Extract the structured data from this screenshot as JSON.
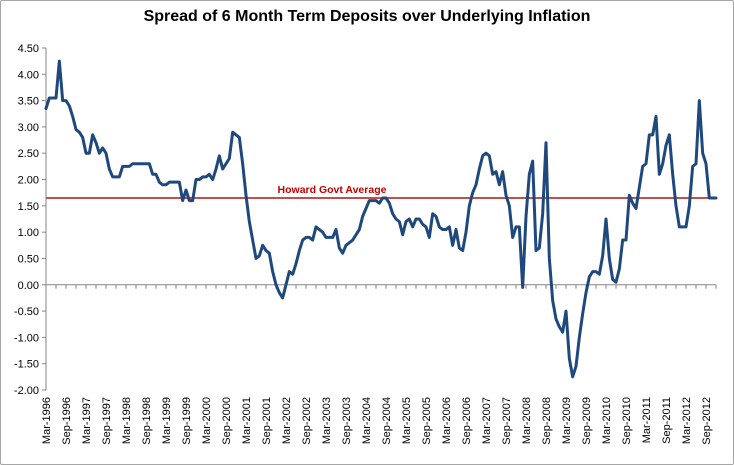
{
  "chart_data": {
    "type": "line",
    "title": "Spread of 6 Month Term Deposits over Underlying Inflation",
    "xlabel": "",
    "ylabel": "",
    "ylim": [
      -2.0,
      4.5
    ],
    "ytick_step": 0.5,
    "x_start": "1996-03",
    "x_end": "2012-09",
    "x_tick_labels": [
      "Mar-1996",
      "Sep-1996",
      "Mar-1997",
      "Sep-1997",
      "Mar-1998",
      "Sep-1998",
      "Mar-1999",
      "Sep-1999",
      "Mar-2000",
      "Sep-2000",
      "Mar-2001",
      "Sep-2001",
      "Mar-2002",
      "Sep-2002",
      "Mar-2003",
      "Sep-2003",
      "Mar-2004",
      "Sep-2004",
      "Mar-2005",
      "Sep-2005",
      "Mar-2006",
      "Sep-2006",
      "Mar-2007",
      "Sep-2007",
      "Mar-2008",
      "Sep-2008",
      "Mar-2009",
      "Sep-2009",
      "Mar-2010",
      "Sep-2010",
      "Mar-2011",
      "Sep-2011",
      "Mar-2012",
      "Sep-2012"
    ],
    "grid": false,
    "series": [
      {
        "name": "",
        "color": "#1f497d",
        "points": [
          [
            "1996-03",
            3.35
          ],
          [
            "1996-04",
            3.55
          ],
          [
            "1996-05",
            3.55
          ],
          [
            "1996-06",
            3.55
          ],
          [
            "1996-07",
            4.25
          ],
          [
            "1996-08",
            3.5
          ],
          [
            "1996-09",
            3.5
          ],
          [
            "1996-10",
            3.4
          ],
          [
            "1996-11",
            3.2
          ],
          [
            "1996-12",
            2.95
          ],
          [
            "1997-01",
            2.9
          ],
          [
            "1997-02",
            2.8
          ],
          [
            "1997-03",
            2.5
          ],
          [
            "1997-04",
            2.5
          ],
          [
            "1997-05",
            2.85
          ],
          [
            "1997-06",
            2.7
          ],
          [
            "1997-07",
            2.5
          ],
          [
            "1997-08",
            2.6
          ],
          [
            "1997-09",
            2.5
          ],
          [
            "1997-10",
            2.2
          ],
          [
            "1997-11",
            2.05
          ],
          [
            "1997-12",
            2.05
          ],
          [
            "1998-01",
            2.05
          ],
          [
            "1998-02",
            2.25
          ],
          [
            "1998-03",
            2.25
          ],
          [
            "1998-04",
            2.25
          ],
          [
            "1998-05",
            2.3
          ],
          [
            "1998-06",
            2.3
          ],
          [
            "1998-07",
            2.3
          ],
          [
            "1998-08",
            2.3
          ],
          [
            "1998-09",
            2.3
          ],
          [
            "1998-10",
            2.3
          ],
          [
            "1998-11",
            2.1
          ],
          [
            "1998-12",
            2.1
          ],
          [
            "1999-01",
            1.95
          ],
          [
            "1999-02",
            1.9
          ],
          [
            "1999-03",
            1.9
          ],
          [
            "1999-04",
            1.95
          ],
          [
            "1999-05",
            1.95
          ],
          [
            "1999-06",
            1.95
          ],
          [
            "1999-07",
            1.95
          ],
          [
            "1999-08",
            1.6
          ],
          [
            "1999-09",
            1.8
          ],
          [
            "1999-10",
            1.6
          ],
          [
            "1999-11",
            1.6
          ],
          [
            "1999-12",
            2.0
          ],
          [
            "2000-01",
            2.0
          ],
          [
            "2000-02",
            2.05
          ],
          [
            "2000-03",
            2.05
          ],
          [
            "2000-04",
            2.1
          ],
          [
            "2000-05",
            2.0
          ],
          [
            "2000-06",
            2.2
          ],
          [
            "2000-07",
            2.45
          ],
          [
            "2000-08",
            2.2
          ],
          [
            "2000-09",
            2.3
          ],
          [
            "2000-10",
            2.4
          ],
          [
            "2000-11",
            2.9
          ],
          [
            "2000-12",
            2.85
          ],
          [
            "2001-01",
            2.8
          ],
          [
            "2001-02",
            2.3
          ],
          [
            "2001-03",
            1.7
          ],
          [
            "2001-04",
            1.2
          ],
          [
            "2001-05",
            0.85
          ],
          [
            "2001-06",
            0.5
          ],
          [
            "2001-07",
            0.55
          ],
          [
            "2001-08",
            0.75
          ],
          [
            "2001-09",
            0.65
          ],
          [
            "2001-10",
            0.6
          ],
          [
            "2001-11",
            0.25
          ],
          [
            "2001-12",
            0.0
          ],
          [
            "2002-01",
            -0.15
          ],
          [
            "2002-02",
            -0.25
          ],
          [
            "2002-03",
            0.0
          ],
          [
            "2002-04",
            0.25
          ],
          [
            "2002-05",
            0.2
          ],
          [
            "2002-06",
            0.4
          ],
          [
            "2002-07",
            0.65
          ],
          [
            "2002-08",
            0.85
          ],
          [
            "2002-09",
            0.9
          ],
          [
            "2002-10",
            0.9
          ],
          [
            "2002-11",
            0.85
          ],
          [
            "2002-12",
            1.1
          ],
          [
            "2003-01",
            1.05
          ],
          [
            "2003-02",
            1.0
          ],
          [
            "2003-03",
            0.9
          ],
          [
            "2003-04",
            0.9
          ],
          [
            "2003-05",
            0.9
          ],
          [
            "2003-06",
            1.05
          ],
          [
            "2003-07",
            0.7
          ],
          [
            "2003-08",
            0.6
          ],
          [
            "2003-09",
            0.75
          ],
          [
            "2003-10",
            0.8
          ],
          [
            "2003-11",
            0.85
          ],
          [
            "2003-12",
            0.95
          ],
          [
            "2004-01",
            1.05
          ],
          [
            "2004-02",
            1.3
          ],
          [
            "2004-03",
            1.45
          ],
          [
            "2004-04",
            1.6
          ],
          [
            "2004-05",
            1.6
          ],
          [
            "2004-06",
            1.6
          ],
          [
            "2004-07",
            1.55
          ],
          [
            "2004-08",
            1.65
          ],
          [
            "2004-09",
            1.65
          ],
          [
            "2004-10",
            1.55
          ],
          [
            "2004-11",
            1.35
          ],
          [
            "2004-12",
            1.25
          ],
          [
            "2005-01",
            1.2
          ],
          [
            "2005-02",
            0.95
          ],
          [
            "2005-03",
            1.2
          ],
          [
            "2005-04",
            1.25
          ],
          [
            "2005-05",
            1.1
          ],
          [
            "2005-06",
            1.25
          ],
          [
            "2005-07",
            1.25
          ],
          [
            "2005-08",
            1.15
          ],
          [
            "2005-09",
            1.1
          ],
          [
            "2005-10",
            0.9
          ],
          [
            "2005-11",
            1.35
          ],
          [
            "2005-12",
            1.3
          ],
          [
            "2006-01",
            1.1
          ],
          [
            "2006-02",
            1.05
          ],
          [
            "2006-03",
            1.05
          ],
          [
            "2006-04",
            1.1
          ],
          [
            "2006-05",
            0.75
          ],
          [
            "2006-06",
            1.05
          ],
          [
            "2006-07",
            0.7
          ],
          [
            "2006-08",
            0.65
          ],
          [
            "2006-09",
            1.0
          ],
          [
            "2006-10",
            1.5
          ],
          [
            "2006-11",
            1.75
          ],
          [
            "2006-12",
            1.9
          ],
          [
            "2007-01",
            2.2
          ],
          [
            "2007-02",
            2.45
          ],
          [
            "2007-03",
            2.5
          ],
          [
            "2007-04",
            2.45
          ],
          [
            "2007-05",
            2.1
          ],
          [
            "2007-06",
            2.15
          ],
          [
            "2007-07",
            1.9
          ],
          [
            "2007-08",
            2.15
          ],
          [
            "2007-09",
            1.7
          ],
          [
            "2007-10",
            1.5
          ],
          [
            "2007-11",
            0.9
          ],
          [
            "2007-12",
            1.1
          ],
          [
            "2008-01",
            1.1
          ],
          [
            "2008-02",
            -0.05
          ],
          [
            "2008-03",
            1.3
          ],
          [
            "2008-04",
            2.1
          ],
          [
            "2008-05",
            2.35
          ],
          [
            "2008-06",
            0.65
          ],
          [
            "2008-07",
            0.7
          ],
          [
            "2008-08",
            1.35
          ],
          [
            "2008-09",
            2.7
          ],
          [
            "2008-10",
            0.5
          ],
          [
            "2008-11",
            -0.3
          ],
          [
            "2008-12",
            -0.65
          ],
          [
            "2009-01",
            -0.8
          ],
          [
            "2009-02",
            -0.9
          ],
          [
            "2009-03",
            -0.5
          ],
          [
            "2009-04",
            -1.4
          ],
          [
            "2009-05",
            -1.75
          ],
          [
            "2009-06",
            -1.55
          ],
          [
            "2009-07",
            -1.0
          ],
          [
            "2009-08",
            -0.55
          ],
          [
            "2009-09",
            -0.15
          ],
          [
            "2009-10",
            0.15
          ],
          [
            "2009-11",
            0.25
          ],
          [
            "2009-12",
            0.25
          ],
          [
            "2010-01",
            0.2
          ],
          [
            "2010-02",
            0.55
          ],
          [
            "2010-03",
            1.25
          ],
          [
            "2010-04",
            0.5
          ],
          [
            "2010-05",
            0.1
          ],
          [
            "2010-06",
            0.05
          ],
          [
            "2010-07",
            0.3
          ],
          [
            "2010-08",
            0.85
          ],
          [
            "2010-09",
            0.85
          ],
          [
            "2010-10",
            1.7
          ],
          [
            "2010-11",
            1.55
          ],
          [
            "2010-12",
            1.45
          ],
          [
            "2011-01",
            1.85
          ],
          [
            "2011-02",
            2.25
          ],
          [
            "2011-03",
            2.3
          ],
          [
            "2011-04",
            2.85
          ],
          [
            "2011-05",
            2.85
          ],
          [
            "2011-06",
            3.2
          ],
          [
            "2011-07",
            2.1
          ],
          [
            "2011-08",
            2.3
          ],
          [
            "2011-09",
            2.65
          ],
          [
            "2011-10",
            2.85
          ],
          [
            "2011-11",
            2.1
          ],
          [
            "2011-12",
            1.5
          ],
          [
            "2012-01",
            1.1
          ],
          [
            "2012-02",
            1.1
          ],
          [
            "2012-03",
            1.1
          ],
          [
            "2012-04",
            1.5
          ],
          [
            "2012-05",
            2.25
          ],
          [
            "2012-06",
            2.3
          ],
          [
            "2012-07",
            3.5
          ],
          [
            "2012-08",
            2.5
          ],
          [
            "2012-09",
            2.3
          ],
          [
            "2012-10",
            1.65
          ],
          [
            "2012-11",
            1.65
          ],
          [
            "2012-12",
            1.65
          ]
        ]
      }
    ],
    "reference_line": {
      "label": "Howard Govt Average",
      "value": 1.65,
      "color": "#c0504d"
    }
  }
}
